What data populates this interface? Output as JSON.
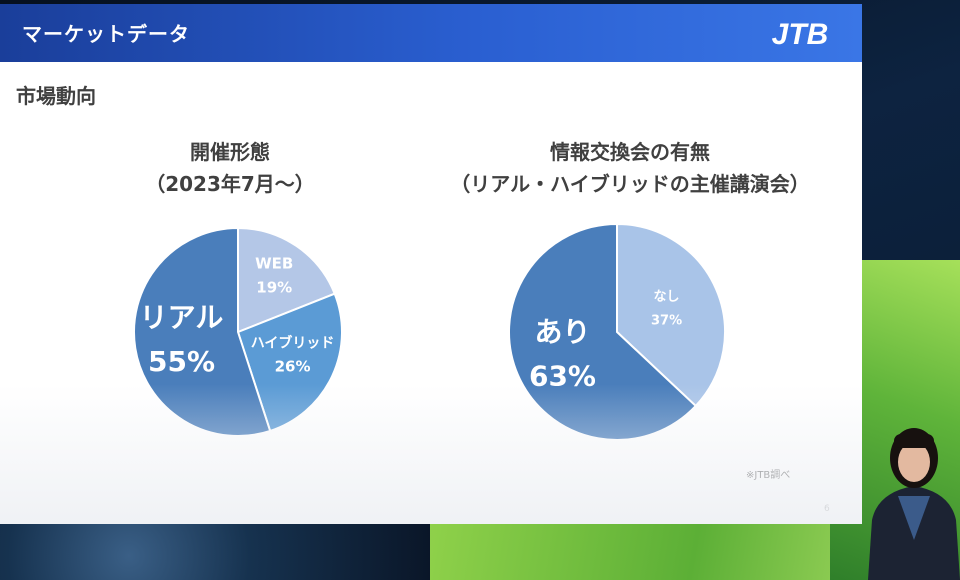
{
  "header": {
    "title": "マーケットデータ",
    "logo_text": "JTB"
  },
  "slide": {
    "subtitle": "市場動向",
    "note": "※JTB調べ",
    "page_number": "6"
  },
  "charts": {
    "left": {
      "title_line1": "開催形態",
      "title_line2": "（2023年7月～）"
    },
    "right": {
      "title_line1": "情報交換会の有無",
      "title_line2": "（リアル・ハイブリッドの主催講演会）"
    }
  },
  "chart_data": [
    {
      "type": "pie",
      "title": "開催形態（2023年7月～）",
      "slices": [
        {
          "label": "WEB",
          "value": 19,
          "display": "19%",
          "color": "#b4c7e7"
        },
        {
          "label": "ハイブリッド",
          "value": 26,
          "display": "26%",
          "color": "#5b9bd5"
        },
        {
          "label": "リアル",
          "value": 55,
          "display": "55%",
          "color": "#4a7ebb"
        }
      ]
    },
    {
      "type": "pie",
      "title": "情報交換会の有無（リアル・ハイブリッドの主催講演会）",
      "slices": [
        {
          "label": "なし",
          "value": 37,
          "display": "37%",
          "color": "#a9c4e8"
        },
        {
          "label": "あり",
          "value": 63,
          "display": "63%",
          "color": "#4a7ebb"
        }
      ]
    }
  ]
}
